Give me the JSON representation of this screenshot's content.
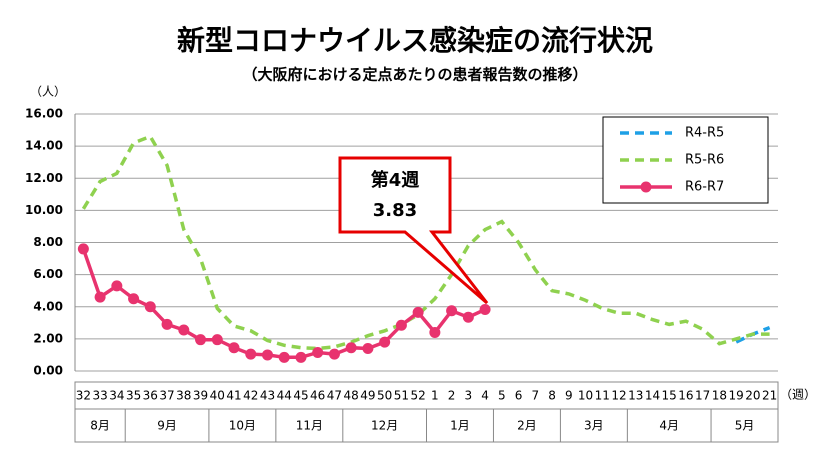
{
  "chart_data": {
    "type": "line",
    "title": "新型コロナウイルス感染症の流行状況",
    "subtitle": "（大阪府における定点あたりの患者報告数の推移）",
    "y_axis_label": "（人）",
    "x_axis_label": "（週）",
    "categories": [
      "32",
      "33",
      "34",
      "35",
      "36",
      "37",
      "38",
      "39",
      "40",
      "41",
      "42",
      "43",
      "44",
      "45",
      "46",
      "47",
      "48",
      "49",
      "50",
      "51",
      "52",
      "1",
      "2",
      "3",
      "4",
      "5",
      "6",
      "7",
      "8",
      "9",
      "10",
      "11",
      "12",
      "13",
      "14",
      "15",
      "16",
      "17",
      "18",
      "19",
      "20",
      "21"
    ],
    "month_groups": [
      {
        "label": "8月",
        "weeks": [
          "32",
          "34"
        ]
      },
      {
        "label": "9月",
        "weeks": [
          "35",
          "39"
        ]
      },
      {
        "label": "10月",
        "weeks": [
          "40",
          "43"
        ]
      },
      {
        "label": "11月",
        "weeks": [
          "44",
          "47"
        ]
      },
      {
        "label": "12月",
        "weeks": [
          "48",
          "52"
        ]
      },
      {
        "label": "1月",
        "weeks": [
          "1",
          "4"
        ]
      },
      {
        "label": "2月",
        "weeks": [
          "5",
          "8"
        ]
      },
      {
        "label": "3月",
        "weeks": [
          "9",
          "12"
        ]
      },
      {
        "label": "4月",
        "weeks": [
          "13",
          "17"
        ]
      },
      {
        "label": "5月",
        "weeks": [
          "18",
          "21"
        ]
      }
    ],
    "ylim": [
      0,
      16
    ],
    "yticks": [
      {
        "value": 0,
        "label": "0.00"
      },
      {
        "value": 2,
        "label": "2.00"
      },
      {
        "value": 4,
        "label": "4.00"
      },
      {
        "value": 6,
        "label": "6.00"
      },
      {
        "value": 8,
        "label": "8.00"
      },
      {
        "value": 10,
        "label": "10.00"
      },
      {
        "value": 12,
        "label": "12.00"
      },
      {
        "value": 14,
        "label": "14.00"
      },
      {
        "value": 16,
        "label": "16.00"
      }
    ],
    "grid": true,
    "legend": "upper right",
    "series": [
      {
        "name": "R4-R5",
        "color": "#1ea0e6",
        "dash": true,
        "marker": false,
        "values": [
          null,
          null,
          null,
          null,
          null,
          null,
          null,
          null,
          null,
          null,
          null,
          null,
          null,
          null,
          null,
          null,
          null,
          null,
          null,
          null,
          null,
          null,
          null,
          null,
          null,
          null,
          null,
          null,
          null,
          null,
          null,
          null,
          null,
          null,
          null,
          null,
          null,
          null,
          null,
          1.8,
          2.3,
          2.7
        ]
      },
      {
        "name": "R5-R6",
        "color": "#8fd14f",
        "dash": true,
        "marker": false,
        "values": [
          10.1,
          11.8,
          12.3,
          14.2,
          14.6,
          12.8,
          8.8,
          7.0,
          3.9,
          2.8,
          2.5,
          1.9,
          1.6,
          1.45,
          1.4,
          1.5,
          1.8,
          2.2,
          2.5,
          2.9,
          3.5,
          4.5,
          6.0,
          7.8,
          8.8,
          9.3,
          8.0,
          6.3,
          5.0,
          4.8,
          4.4,
          3.9,
          3.6,
          3.6,
          3.2,
          2.9,
          3.1,
          2.6,
          1.7,
          2.0,
          2.3,
          2.3
        ]
      },
      {
        "name": "R6-R7",
        "color": "#e8336e",
        "dash": false,
        "marker": true,
        "values": [
          7.6,
          4.6,
          5.3,
          4.5,
          4.0,
          2.9,
          2.55,
          1.95,
          1.95,
          1.45,
          1.05,
          1.0,
          0.85,
          0.85,
          1.15,
          1.05,
          1.45,
          1.4,
          1.8,
          2.85,
          3.65,
          2.4,
          3.75,
          3.35,
          3.83,
          null,
          null,
          null,
          null,
          null,
          null,
          null,
          null,
          null,
          null,
          null,
          null,
          null,
          null,
          null,
          null,
          null
        ]
      }
    ],
    "callout": {
      "title": "第4週",
      "label": "3.83"
    }
  }
}
